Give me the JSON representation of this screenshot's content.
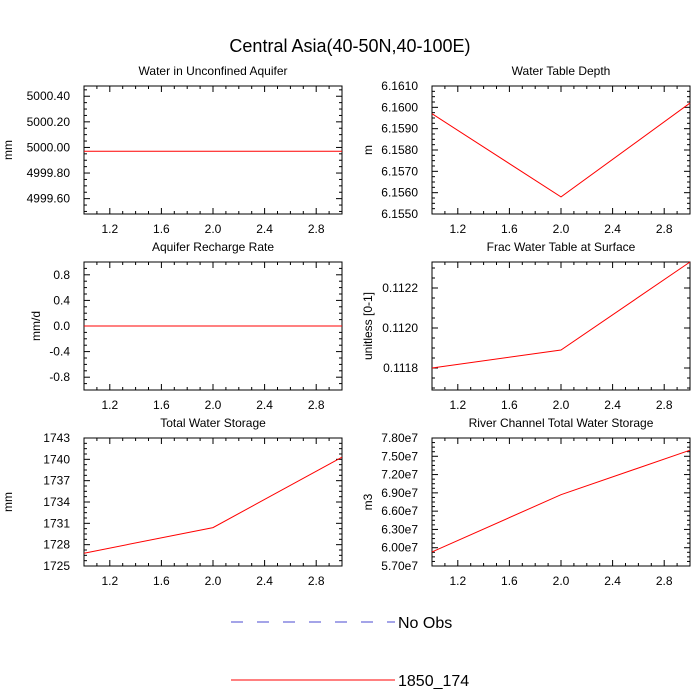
{
  "figure": {
    "title": "Central Asia(40-50N,40-100E)"
  },
  "chart_data": [
    {
      "type": "line",
      "title": "Water in Unconfined Aquifer",
      "xlabel": "",
      "ylabel": "mm",
      "xlim": [
        1.0,
        3.0
      ],
      "ylim": [
        4999.48,
        5000.48
      ],
      "xticks": [
        1.2,
        1.6,
        2.0,
        2.4,
        2.8
      ],
      "xtick_labels": [
        "1.2",
        "1.6",
        "2.0",
        "2.4",
        "2.8"
      ],
      "yticks": [
        4999.6,
        4999.8,
        5000.0,
        5000.2,
        5000.4
      ],
      "ytick_labels": [
        "4999.60",
        "4999.80",
        "5000.00",
        "5000.20",
        "5000.40"
      ],
      "x": [
        1.0,
        2.0,
        3.0
      ],
      "series": [
        {
          "name": "1850_174",
          "color": "#ff0000",
          "values": [
            4999.97,
            4999.97,
            4999.97
          ]
        }
      ]
    },
    {
      "type": "line",
      "title": "Water Table Depth",
      "xlabel": "",
      "ylabel": "m",
      "xlim": [
        1.0,
        3.0
      ],
      "ylim": [
        6.155,
        6.161
      ],
      "xticks": [
        1.2,
        1.6,
        2.0,
        2.4,
        2.8
      ],
      "xtick_labels": [
        "1.2",
        "1.6",
        "2.0",
        "2.4",
        "2.8"
      ],
      "yticks": [
        6.155,
        6.156,
        6.157,
        6.158,
        6.159,
        6.16,
        6.161
      ],
      "ytick_labels": [
        "6.1550",
        "6.1560",
        "6.1570",
        "6.1580",
        "6.1590",
        "6.1600",
        "6.1610"
      ],
      "x": [
        1.0,
        2.0,
        3.0
      ],
      "series": [
        {
          "name": "1850_174",
          "color": "#ff0000",
          "values": [
            6.1597,
            6.1558,
            6.1602
          ]
        }
      ]
    },
    {
      "type": "line",
      "title": "Aquifer Recharge Rate",
      "xlabel": "",
      "ylabel": "mm/d",
      "xlim": [
        1.0,
        3.0
      ],
      "ylim": [
        -1.0,
        1.0
      ],
      "xticks": [
        1.2,
        1.6,
        2.0,
        2.4,
        2.8
      ],
      "xtick_labels": [
        "1.2",
        "1.6",
        "2.0",
        "2.4",
        "2.8"
      ],
      "yticks": [
        -0.8,
        -0.4,
        0.0,
        0.4,
        0.8
      ],
      "ytick_labels": [
        "-0.8",
        "-0.4",
        "0.0",
        "0.4",
        "0.8"
      ],
      "x": [
        1.0,
        2.0,
        3.0
      ],
      "series": [
        {
          "name": "1850_174",
          "color": "#ff0000",
          "values": [
            0.0,
            0.0,
            0.0
          ]
        }
      ]
    },
    {
      "type": "line",
      "title": "Frac Water Table at Surface",
      "xlabel": "",
      "ylabel": "unitless [0-1]",
      "xlim": [
        1.0,
        3.0
      ],
      "ylim": [
        0.11169,
        0.11233
      ],
      "xticks": [
        1.2,
        1.6,
        2.0,
        2.4,
        2.8
      ],
      "xtick_labels": [
        "1.2",
        "1.6",
        "2.0",
        "2.4",
        "2.8"
      ],
      "yticks": [
        0.1118,
        0.112,
        0.1122
      ],
      "ytick_labels": [
        "0.1118",
        "0.1120",
        "0.1122"
      ],
      "x": [
        1.0,
        2.0,
        3.0
      ],
      "series": [
        {
          "name": "1850_174",
          "color": "#ff0000",
          "values": [
            0.1118,
            0.11189,
            0.11233
          ]
        }
      ]
    },
    {
      "type": "line",
      "title": "Total Water Storage",
      "xlabel": "",
      "ylabel": "mm",
      "xlim": [
        1.0,
        3.0
      ],
      "ylim": [
        1725,
        1743
      ],
      "xticks": [
        1.2,
        1.6,
        2.0,
        2.4,
        2.8
      ],
      "xtick_labels": [
        "1.2",
        "1.6",
        "2.0",
        "2.4",
        "2.8"
      ],
      "yticks": [
        1725,
        1728,
        1731,
        1734,
        1737,
        1740,
        1743
      ],
      "ytick_labels": [
        "1725",
        "1728",
        "1731",
        "1734",
        "1737",
        "1740",
        "1743"
      ],
      "x": [
        1.0,
        2.0,
        3.0
      ],
      "series": [
        {
          "name": "1850_174",
          "color": "#ff0000",
          "values": [
            1726.8,
            1730.4,
            1740.3
          ]
        }
      ]
    },
    {
      "type": "line",
      "title": "River Channel Total Water Storage",
      "xlabel": "",
      "ylabel": "m3",
      "xlim": [
        1.0,
        3.0
      ],
      "ylim": [
        57000000.0,
        78000000.0
      ],
      "xticks": [
        1.2,
        1.6,
        2.0,
        2.4,
        2.8
      ],
      "xtick_labels": [
        "1.2",
        "1.6",
        "2.0",
        "2.4",
        "2.8"
      ],
      "yticks": [
        57000000.0,
        60000000.0,
        63000000.0,
        66000000.0,
        69000000.0,
        72000000.0,
        75000000.0,
        78000000.0
      ],
      "ytick_labels": [
        "5.70e7",
        "6.00e7",
        "6.30e7",
        "6.60e7",
        "6.90e7",
        "7.20e7",
        "7.50e7",
        "7.80e7"
      ],
      "x": [
        1.0,
        2.0,
        3.0
      ],
      "series": [
        {
          "name": "1850_174",
          "color": "#ff0000",
          "values": [
            59300000.0,
            68700000.0,
            76000000.0
          ]
        }
      ]
    }
  ],
  "legend": {
    "items": [
      {
        "label": "No Obs",
        "color": "#4a4ad0",
        "style": "dashed"
      },
      {
        "label": "1850_174",
        "color": "#ff0000",
        "style": "solid"
      }
    ]
  }
}
